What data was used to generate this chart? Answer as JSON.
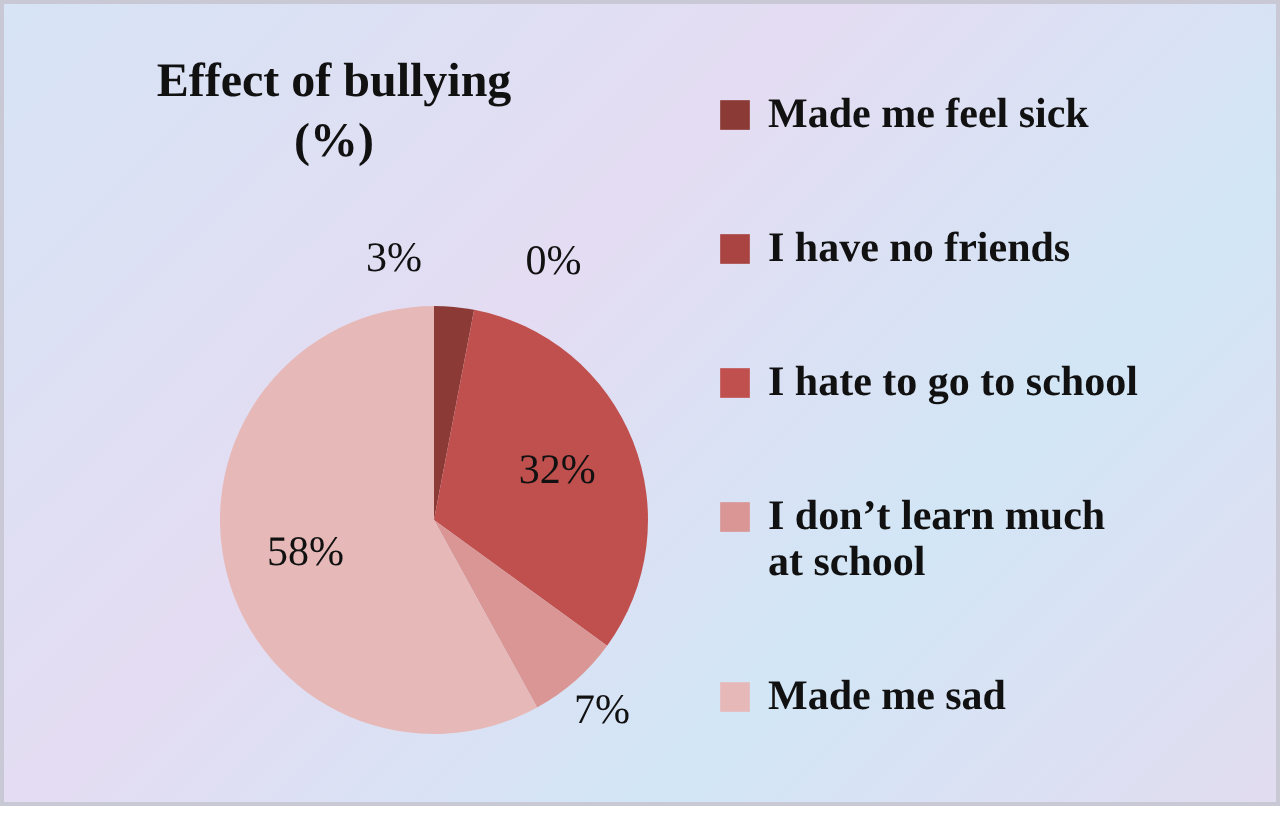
{
  "chart_data": {
    "type": "pie",
    "title": "Effect of bullying (%)",
    "categories": [
      "Made me feel sick",
      "I have no friends",
      "I hate to go to school",
      "I don’t learn much at school",
      "Made me sad"
    ],
    "values": [
      3,
      0,
      32,
      7,
      58
    ],
    "colors": [
      "#8b3a36",
      "#a94442",
      "#c0504d",
      "#d99694",
      "#e6b9b8"
    ],
    "value_labels": [
      "3%",
      "0%",
      "32%",
      "7%",
      "58%"
    ],
    "legend": "right"
  }
}
